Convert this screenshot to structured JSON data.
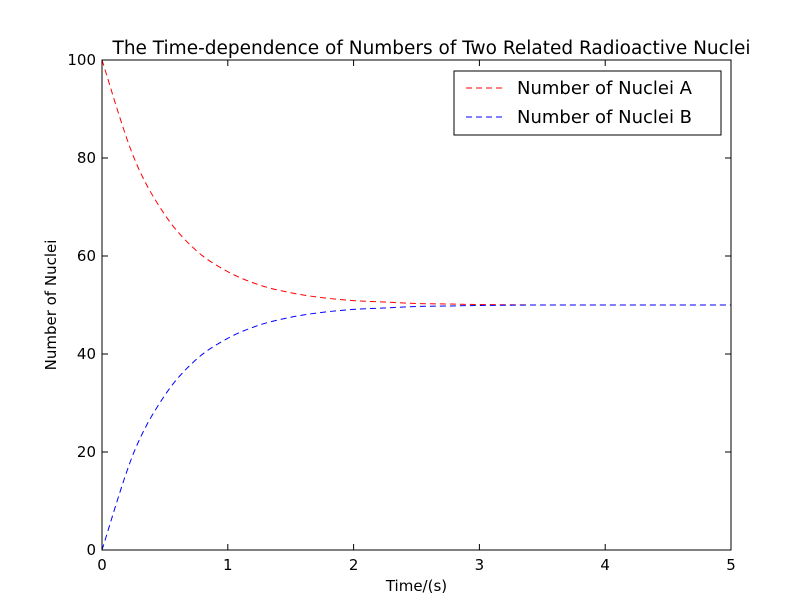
{
  "chart_data": {
    "type": "line",
    "title": "The Time-dependence of Numbers of Two Related Radioactive Nuclei",
    "xlabel": "Time/(s)",
    "ylabel": "Number of Nuclei",
    "xlim": [
      0,
      5
    ],
    "ylim": [
      0,
      100
    ],
    "xticks": [
      "0",
      "1",
      "2",
      "3",
      "4",
      "5"
    ],
    "yticks": [
      "0",
      "20",
      "40",
      "60",
      "80",
      "100"
    ],
    "grid": false,
    "legend_position": "top-right",
    "x": [
      0,
      0.25,
      0.5,
      0.75,
      1,
      1.25,
      1.5,
      1.75,
      2,
      2.25,
      2.5,
      2.75,
      3,
      3.5,
      4,
      4.5,
      5
    ],
    "series": [
      {
        "name": "Number of Nuclei A",
        "color": "#ff0000",
        "style": "dashed",
        "values": [
          100,
          80.3,
          68.4,
          61.1,
          56.8,
          54.1,
          52.5,
          51.5,
          50.9,
          50.6,
          50.3,
          50.2,
          50.1,
          50.0,
          50.0,
          50.0,
          50.0
        ]
      },
      {
        "name": "Number of Nuclei B",
        "color": "#0000ff",
        "style": "dashed",
        "values": [
          0,
          19.7,
          31.6,
          38.9,
          43.2,
          45.9,
          47.5,
          48.5,
          49.1,
          49.4,
          49.7,
          49.8,
          49.9,
          50.0,
          50.0,
          50.0,
          50.0
        ]
      }
    ]
  }
}
